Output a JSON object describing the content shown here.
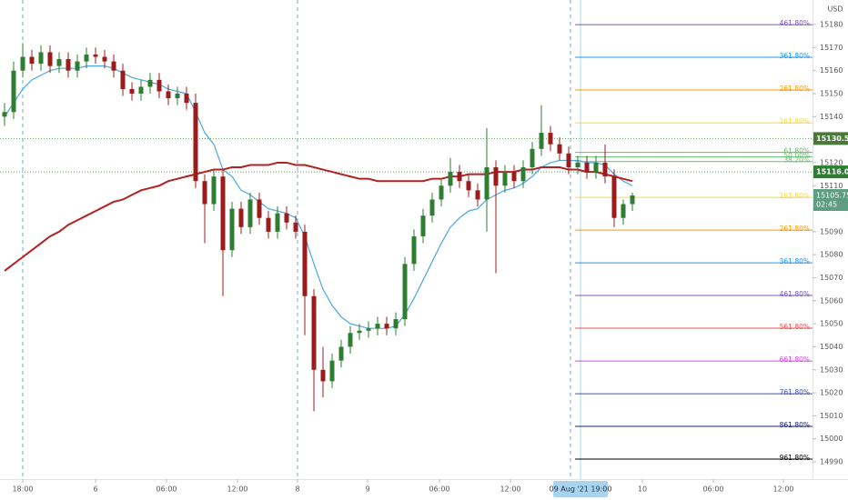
{
  "chart_data": {
    "type": "candlestick",
    "currency": "USD",
    "xlim": [
      -0.5,
      88.8
    ],
    "ylim": [
      14982.5,
      15190.7
    ],
    "yticks": [
      14990,
      15000,
      15010,
      15020,
      15030,
      15040,
      15050,
      15060,
      15070,
      15080,
      15090,
      15100,
      15110,
      15120,
      15130,
      15140,
      15150,
      15160,
      15170,
      15180
    ],
    "xticks": [
      {
        "value": 2,
        "label": "18:00"
      },
      {
        "value": 10,
        "label": "6"
      },
      {
        "value": 17.8,
        "label": "06:00"
      },
      {
        "value": 25.6,
        "label": "12:00"
      },
      {
        "value": 32.2,
        "label": "8"
      },
      {
        "value": 39.9,
        "label": "9"
      },
      {
        "value": 47.8,
        "label": "06:00"
      },
      {
        "value": 55.6,
        "label": "12:00"
      },
      {
        "value": 70.1,
        "label": "10"
      },
      {
        "value": 77.9,
        "label": "06:00"
      },
      {
        "value": 85.6,
        "label": "12:00"
      }
    ],
    "cursor": {
      "value": 63.3,
      "label": "09 Aug '21   19:00"
    },
    "session_lines": [
      2,
      32.2,
      62.2
    ],
    "up_color": "#2e7d32",
    "down_color": "#9b1c1c",
    "open": [
      15140,
      15142,
      15160,
      15166,
      15163,
      15168,
      15162,
      15165,
      15160,
      15164,
      15167,
      15166,
      15164,
      15160,
      15152,
      15150,
      15153,
      15156,
      15151,
      15148,
      15150,
      15146,
      15112,
      15102,
      15114,
      15082,
      15100,
      15092,
      15104,
      15096,
      15090,
      15098,
      15094,
      15090,
      15062,
      15030,
      15025,
      15034,
      15040,
      15046,
      15047,
      15048,
      15050,
      15048,
      15052,
      15076,
      15088,
      15097,
      15104,
      15110,
      15116,
      15112,
      15108,
      15104,
      15118,
      15110,
      15116,
      15112,
      15118,
      15126,
      15133,
      15128,
      15124,
      15118,
      15120,
      15116,
      15120,
      15114,
      15096,
      15102
    ],
    "high": [
      15146,
      15164,
      15172,
      15169,
      15171,
      15171,
      15168,
      15168,
      15167,
      15170,
      15170,
      15169,
      15167,
      15163,
      15155,
      15156,
      15159,
      15159,
      15154,
      15153,
      15153,
      15150,
      15115,
      15117,
      15117,
      15103,
      15103,
      15107,
      15107,
      15099,
      15101,
      15101,
      15097,
      15093,
      15065,
      15040,
      15037,
      15043,
      15049,
      15050,
      15051,
      15053,
      15053,
      15055,
      15079,
      15091,
      15100,
      15107,
      15113,
      15122,
      15119,
      15115,
      15111,
      15135,
      15121,
      15119,
      15119,
      15121,
      15129,
      15145,
      15136,
      15131,
      15127,
      15123,
      15123,
      15123,
      15128,
      15117,
      15104,
      15107
    ],
    "low": [
      15136,
      15139,
      15157,
      15160,
      15160,
      15159,
      15159,
      15157,
      15157,
      15161,
      15163,
      15161,
      15157,
      15149,
      15147,
      15147,
      15150,
      15148,
      15145,
      15145,
      15143,
      15109,
      15085,
      15099,
      15062,
      15079,
      15089,
      15089,
      15093,
      15087,
      15087,
      15091,
      15087,
      15045,
      15012,
      15018,
      15022,
      15031,
      15037,
      15043,
      15044,
      15045,
      15045,
      15045,
      15049,
      15073,
      15085,
      15094,
      15101,
      15107,
      15109,
      15105,
      15101,
      15090,
      15072,
      15107,
      15109,
      15109,
      15115,
      15123,
      15125,
      15121,
      15115,
      15115,
      15113,
      15113,
      15111,
      15092,
      15093,
      15099
    ],
    "close": [
      15142,
      15160,
      15166,
      15163,
      15168,
      15162,
      15165,
      15160,
      15164,
      15167,
      15166,
      15164,
      15160,
      15152,
      15150,
      15153,
      15156,
      15151,
      15148,
      15150,
      15146,
      15112,
      15102,
      15114,
      15082,
      15100,
      15092,
      15104,
      15096,
      15090,
      15098,
      15094,
      15090,
      15062,
      15030,
      15025,
      15034,
      15040,
      15046,
      15047,
      15048,
      15050,
      15048,
      15052,
      15076,
      15088,
      15097,
      15104,
      15110,
      15116,
      15112,
      15108,
      15104,
      15118,
      15110,
      15116,
      15112,
      15118,
      15126,
      15133,
      15128,
      15124,
      15118,
      15120,
      15116,
      15120,
      15114,
      15096,
      15102,
      15105.75
    ],
    "moving_averages": [
      {
        "color": "#4aa8e0",
        "values": [
          15140,
          15146,
          15152,
          15156,
          15158,
          15160,
          15161,
          15161,
          15161,
          15162,
          15162,
          15162,
          15161,
          15159,
          15157,
          15156,
          15155,
          15154,
          15152,
          15151,
          15150,
          15142,
          15133,
          15128,
          15117,
          15114,
          15108,
          15106,
          15103,
          15100,
          15099,
          15098,
          15096,
          15088,
          15076,
          15065,
          15058,
          15053,
          15050,
          15049,
          15048,
          15048,
          15048,
          15049,
          15054,
          15061,
          15069,
          15077,
          15085,
          15092,
          15096,
          15099,
          15100,
          15104,
          15106,
          15108,
          15109,
          15111,
          15114,
          15118,
          15120,
          15121,
          15121,
          15121,
          15120,
          15120,
          15119,
          15115,
          15112,
          15110
        ]
      },
      {
        "color": "#b22222",
        "values": [
          15073,
          15076,
          15079,
          15082,
          15085,
          15088,
          15090,
          15093,
          15095,
          15097,
          15099,
          15101,
          15103,
          15104,
          15106,
          15108,
          15109,
          15110,
          15112,
          15113,
          15114,
          15115,
          15116,
          15117,
          15117,
          15118,
          15118,
          15119,
          15119,
          15119,
          15120,
          15120,
          15119,
          15119,
          15118,
          15117,
          15116,
          15115,
          15114,
          15113,
          15113,
          15112,
          15112,
          15112,
          15112,
          15112,
          15112,
          15113,
          15113,
          15114,
          15114,
          15115,
          15115,
          15115,
          15116,
          15116,
          15116,
          15117,
          15117,
          15118,
          15118,
          15118,
          15117,
          15117,
          15116,
          15116,
          15115,
          15114,
          15113,
          15112
        ]
      }
    ],
    "fib_start": 62.7,
    "fib_levels": [
      {
        "label": "461.80%",
        "value": 15180,
        "color": "#7e57c2"
      },
      {
        "label": "361.80%",
        "value": 15165.8,
        "color": "#2196f3"
      },
      {
        "label": "261.80%",
        "value": 15151.6,
        "color": "#ff9800"
      },
      {
        "label": "161.80%",
        "value": 15137.3,
        "color": "#f5d742"
      },
      {
        "label": "61.80%",
        "value": 15124.5,
        "color": "#66bb6a"
      },
      {
        "label": "50.00%",
        "value": 15122.5,
        "color": "#66bb6a"
      },
      {
        "label": "38.20%",
        "value": 15120.5,
        "color": "#66bb6a"
      },
      {
        "label": "161.80%",
        "value": 15104.9,
        "color": "#f5d742"
      },
      {
        "label": "261.80%",
        "value": 15090.7,
        "color": "#ff9800"
      },
      {
        "label": "361.80%",
        "value": 15076.5,
        "color": "#2196f3"
      },
      {
        "label": "461.80%",
        "value": 15062.3,
        "color": "#7e57c2"
      },
      {
        "label": "561.80%",
        "value": 15048.1,
        "color": "#ef5350"
      },
      {
        "label": "661.80%",
        "value": 15033.8,
        "color": "#e040fb"
      },
      {
        "label": "761.80%",
        "value": 15019.6,
        "color": "#3f51b5"
      },
      {
        "label": "861.80%",
        "value": 15005.4,
        "color": "#1a237e"
      },
      {
        "label": "961.80%",
        "value": 14991.2,
        "color": "#000000"
      }
    ],
    "price_lines": [
      {
        "value": 15130.5,
        "label": "15130.50",
        "color": "#4caf50",
        "box": "#4a7a3a"
      },
      {
        "value": 15116,
        "label": "15116.00",
        "color": "#4caf50",
        "box": "#2e7d32"
      }
    ],
    "last_price": {
      "value": 15105.75,
      "label": "15105.75",
      "countdown": "02:45",
      "box": "#5f9d82"
    }
  }
}
